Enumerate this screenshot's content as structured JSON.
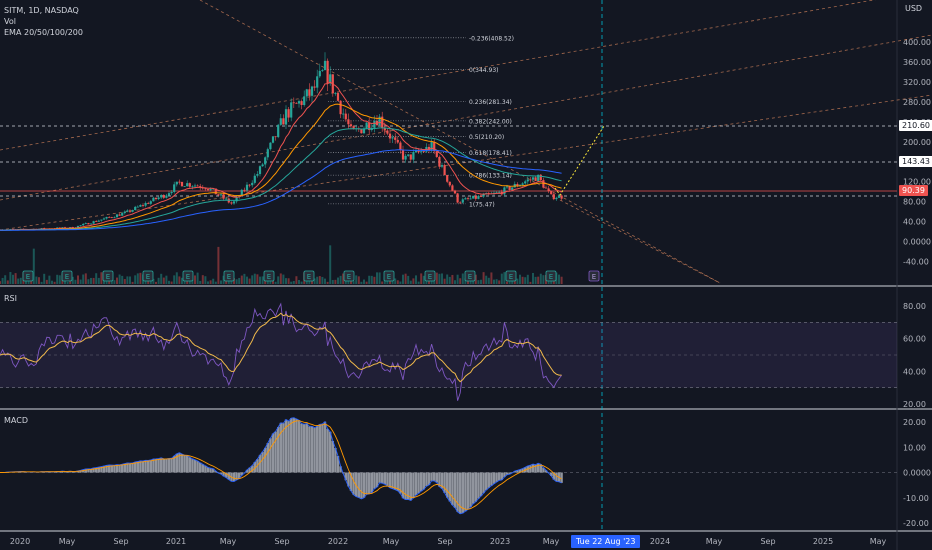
{
  "header": {
    "symbol_line": "SITM, 1D, NASDAQ",
    "vol_label": "Vol",
    "ema_label": "EMA 20/50/100/200"
  },
  "currency": "USD",
  "panes": {
    "rsi_label": "RSI",
    "macd_label": "MACD"
  },
  "colors": {
    "background": "#131722",
    "up_candle": "#26a69a",
    "down_candle": "#ef5350",
    "ema20": "#ef5350",
    "ema50": "#ff9800",
    "ema100": "#26a69a",
    "ema200": "#2962ff",
    "rsi_line": "#7e57c2",
    "rsi_ma": "#f0b94b",
    "fib_line": "#d1d4dc",
    "trend_line": "#c77d58",
    "cursor": "#00bcd4",
    "price_tag_red": "#ef5350"
  },
  "price_tags": {
    "level_1": "210.60",
    "level_2": "143.43",
    "last": "90.39"
  },
  "date_tag": "Tue 22 Aug '23",
  "chart_data": [
    {
      "type": "candlestick",
      "name": "price",
      "y_ticks": [
        "400.00",
        "360.00",
        "320.00",
        "280.00",
        "240.00",
        "200.00",
        "160.00",
        "120.00",
        "80.00",
        "40.00",
        "0.0000",
        "-40.00"
      ],
      "x_ticks": [
        "2020",
        "May",
        "Sep",
        "2021",
        "May",
        "Sep",
        "2022",
        "May",
        "Sep",
        "2023",
        "May",
        "Sep",
        "2024",
        "May",
        "Sep",
        "2025",
        "May"
      ],
      "ylim": [
        -55,
        415
      ],
      "approx_close_path": [
        {
          "x": "2020-01",
          "y": 24
        },
        {
          "x": "2020-05",
          "y": 28
        },
        {
          "x": "2020-09",
          "y": 58
        },
        {
          "x": "2020-12",
          "y": 95
        },
        {
          "x": "2021-01",
          "y": 118
        },
        {
          "x": "2021-03",
          "y": 110
        },
        {
          "x": "2021-05",
          "y": 75
        },
        {
          "x": "2021-07",
          "y": 140
        },
        {
          "x": "2021-09",
          "y": 255
        },
        {
          "x": "2021-11",
          "y": 300
        },
        {
          "x": "2021-12",
          "y": 345
        },
        {
          "x": "2022-02",
          "y": 215
        },
        {
          "x": "2022-04",
          "y": 250
        },
        {
          "x": "2022-06",
          "y": 165
        },
        {
          "x": "2022-08",
          "y": 190
        },
        {
          "x": "2022-10",
          "y": 80
        },
        {
          "x": "2023-01",
          "y": 97
        },
        {
          "x": "2023-03",
          "y": 120
        },
        {
          "x": "2023-04",
          "y": 130
        },
        {
          "x": "2023-05",
          "y": 90
        }
      ],
      "fibonacci": [
        {
          "label": "-0.236(408.52)",
          "value": 408.52
        },
        {
          "label": "0(344.93)",
          "value": 344.93
        },
        {
          "label": "0.236(281.34)",
          "value": 281.34
        },
        {
          "label": "0.382(242.00)",
          "value": 242.0
        },
        {
          "label": "0.5(210.20)",
          "value": 210.2
        },
        {
          "label": "0.618(178.41)",
          "value": 178.41
        },
        {
          "label": "0.786(133.14)",
          "value": 133.14
        },
        {
          "label": "1(75.47)",
          "value": 75.47
        }
      ],
      "earnings_markers": [
        "E",
        "E",
        "E",
        "E",
        "E",
        "E",
        "E",
        "E",
        "E",
        "E",
        "E",
        "E",
        "E",
        "E"
      ],
      "future_earnings_marker": "E"
    },
    {
      "type": "line",
      "name": "RSI",
      "y_ticks": [
        "80.00",
        "60.00",
        "40.00",
        "20.00"
      ],
      "ylim": [
        17,
        88
      ],
      "band": [
        30,
        70
      ]
    },
    {
      "type": "bar",
      "name": "MACD",
      "y_ticks": [
        "20.00",
        "10.00",
        "0.0000",
        "-10.00",
        "-20.00"
      ],
      "ylim": [
        -24,
        26
      ]
    }
  ]
}
